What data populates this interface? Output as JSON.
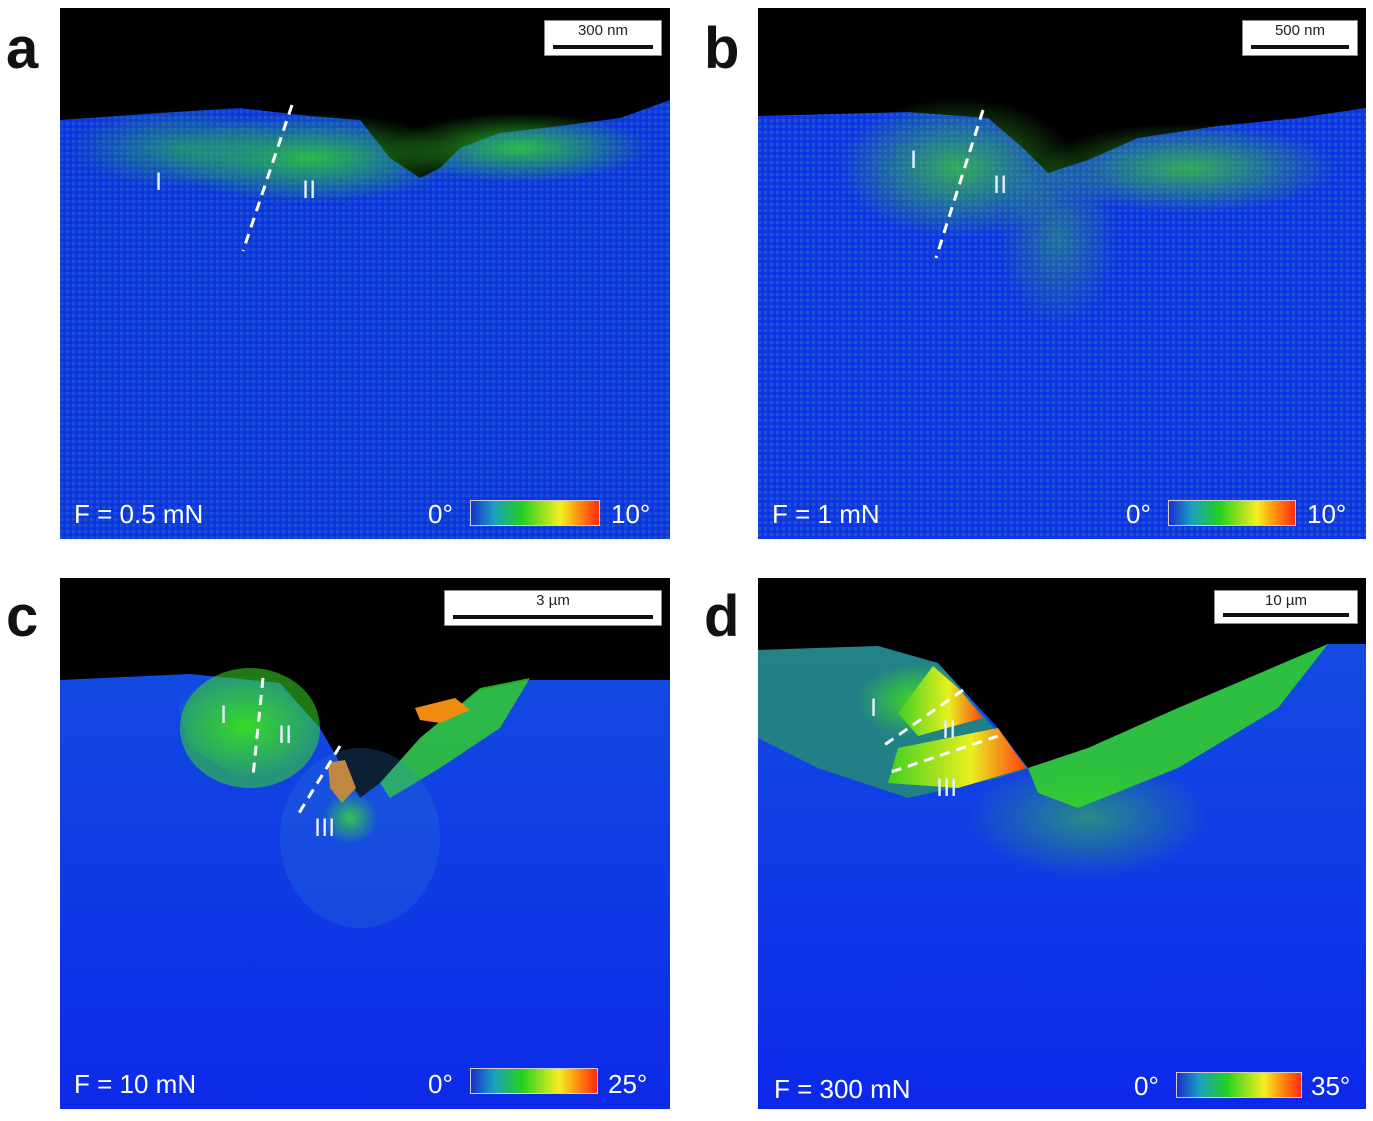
{
  "panels": {
    "a": {
      "letter": "a",
      "scale_bar": "300 nm",
      "force": "F = 0.5 mN",
      "regions": [
        "I",
        "II"
      ],
      "colorbar": {
        "min": "0°",
        "max": "10°"
      }
    },
    "b": {
      "letter": "b",
      "scale_bar": "500 nm",
      "force": "F = 1 mN",
      "regions": [
        "I",
        "II"
      ],
      "colorbar": {
        "min": "0°",
        "max": "10°"
      }
    },
    "c": {
      "letter": "c",
      "scale_bar": "3 µm",
      "force": "F = 10 mN",
      "regions": [
        "I",
        "II",
        "III"
      ],
      "colorbar": {
        "min": "0°",
        "max": "25°"
      }
    },
    "d": {
      "letter": "d",
      "scale_bar": "10 µm",
      "force": "F = 300 mN",
      "regions": [
        "I",
        "II",
        "III"
      ],
      "colorbar": {
        "min": "0°",
        "max": "35°"
      }
    }
  },
  "colors": {
    "background_matrix": "#1030e0",
    "void": "#000000",
    "low_misorientation": "#20c020",
    "high_misorientation": "#ff8020",
    "dashed_line": "#ffffff"
  }
}
